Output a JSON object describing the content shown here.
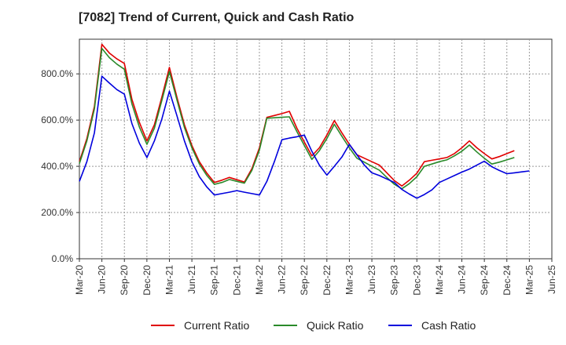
{
  "chart_data": {
    "type": "line",
    "title": "[7082]  Trend of Current, Quick and Cash Ratio",
    "xlabel": "",
    "ylabel": "",
    "ylim": [
      0,
      950
    ],
    "yticks": [
      0,
      200,
      400,
      600,
      800
    ],
    "ytick_labels": [
      "0.0%",
      "200.0%",
      "400.0%",
      "600.0%",
      "800.0%"
    ],
    "xtick_labels": [
      "Mar-20",
      "Jun-20",
      "Sep-20",
      "Dec-20",
      "Mar-21",
      "Jun-21",
      "Sep-21",
      "Dec-21",
      "Mar-22",
      "Jun-22",
      "Sep-22",
      "Dec-22",
      "Mar-23",
      "Jun-23",
      "Sep-23",
      "Dec-23",
      "Mar-24",
      "Jun-24",
      "Sep-24",
      "Dec-24",
      "Mar-25",
      "Jun-25"
    ],
    "grid": true,
    "legend_position": "bottom",
    "series": [
      {
        "name": "Current Ratio",
        "color": "#e00000",
        "points": [
          [
            0,
            420
          ],
          [
            1,
            520
          ],
          [
            2,
            660
          ],
          [
            3,
            928
          ],
          [
            4,
            890
          ],
          [
            5,
            865
          ],
          [
            6,
            845
          ],
          [
            7,
            690
          ],
          [
            8,
            590
          ],
          [
            9,
            510
          ],
          [
            10,
            580
          ],
          [
            11,
            700
          ],
          [
            12,
            828
          ],
          [
            13,
            700
          ],
          [
            14,
            580
          ],
          [
            15,
            490
          ],
          [
            16,
            420
          ],
          [
            17,
            370
          ],
          [
            18,
            330
          ],
          [
            19,
            340
          ],
          [
            20,
            352
          ],
          [
            21,
            342
          ],
          [
            22,
            332
          ],
          [
            23,
            390
          ],
          [
            24,
            480
          ],
          [
            25,
            612
          ],
          [
            26,
            620
          ],
          [
            27,
            628
          ],
          [
            28,
            638
          ],
          [
            29,
            565
          ],
          [
            30,
            505
          ],
          [
            31,
            445
          ],
          [
            32,
            480
          ],
          [
            33,
            535
          ],
          [
            34,
            598
          ],
          [
            35,
            545
          ],
          [
            36,
            495
          ],
          [
            37,
            450
          ],
          [
            38,
            435
          ],
          [
            39,
            420
          ],
          [
            40,
            405
          ],
          [
            41,
            372
          ],
          [
            42,
            338
          ],
          [
            43,
            315
          ],
          [
            44,
            340
          ],
          [
            45,
            370
          ],
          [
            46,
            420
          ],
          [
            47,
            426
          ],
          [
            48,
            432
          ],
          [
            49,
            438
          ],
          [
            50,
            455
          ],
          [
            51,
            480
          ],
          [
            52,
            510
          ],
          [
            53,
            480
          ],
          [
            54,
            455
          ],
          [
            55,
            432
          ],
          [
            56,
            442
          ],
          [
            57,
            455
          ],
          [
            58,
            468
          ]
        ]
      },
      {
        "name": "Quick Ratio",
        "color": "#2a8a2a",
        "points": [
          [
            0,
            412
          ],
          [
            1,
            510
          ],
          [
            2,
            648
          ],
          [
            3,
            910
          ],
          [
            4,
            870
          ],
          [
            5,
            842
          ],
          [
            6,
            820
          ],
          [
            7,
            670
          ],
          [
            8,
            570
          ],
          [
            9,
            495
          ],
          [
            10,
            565
          ],
          [
            11,
            685
          ],
          [
            12,
            810
          ],
          [
            13,
            688
          ],
          [
            14,
            568
          ],
          [
            15,
            480
          ],
          [
            16,
            410
          ],
          [
            17,
            360
          ],
          [
            18,
            322
          ],
          [
            19,
            330
          ],
          [
            20,
            343
          ],
          [
            21,
            335
          ],
          [
            22,
            327
          ],
          [
            23,
            382
          ],
          [
            24,
            470
          ],
          [
            25,
            608
          ],
          [
            26,
            610
          ],
          [
            27,
            612
          ],
          [
            28,
            614
          ],
          [
            29,
            550
          ],
          [
            30,
            490
          ],
          [
            31,
            430
          ],
          [
            32,
            468
          ],
          [
            33,
            520
          ],
          [
            34,
            582
          ],
          [
            35,
            530
          ],
          [
            36,
            480
          ],
          [
            37,
            435
          ],
          [
            38,
            418
          ],
          [
            39,
            400
          ],
          [
            40,
            383
          ],
          [
            41,
            352
          ],
          [
            42,
            322
          ],
          [
            43,
            303
          ],
          [
            44,
            325
          ],
          [
            45,
            355
          ],
          [
            46,
            400
          ],
          [
            47,
            410
          ],
          [
            48,
            420
          ],
          [
            49,
            428
          ],
          [
            50,
            445
          ],
          [
            51,
            465
          ],
          [
            52,
            492
          ],
          [
            53,
            462
          ],
          [
            54,
            435
          ],
          [
            55,
            410
          ],
          [
            56,
            418
          ],
          [
            57,
            428
          ],
          [
            58,
            438
          ]
        ]
      },
      {
        "name": "Cash Ratio",
        "color": "#0000dd",
        "points": [
          [
            0,
            335
          ],
          [
            1,
            420
          ],
          [
            2,
            545
          ],
          [
            3,
            790
          ],
          [
            4,
            760
          ],
          [
            5,
            732
          ],
          [
            6,
            712
          ],
          [
            7,
            585
          ],
          [
            8,
            500
          ],
          [
            9,
            438
          ],
          [
            10,
            510
          ],
          [
            11,
            605
          ],
          [
            12,
            725
          ],
          [
            13,
            620
          ],
          [
            14,
            510
          ],
          [
            15,
            420
          ],
          [
            16,
            355
          ],
          [
            17,
            310
          ],
          [
            18,
            276
          ],
          [
            19,
            282
          ],
          [
            20,
            288
          ],
          [
            21,
            295
          ],
          [
            22,
            288
          ],
          [
            23,
            282
          ],
          [
            24,
            276
          ],
          [
            25,
            335
          ],
          [
            26,
            420
          ],
          [
            27,
            515
          ],
          [
            28,
            522
          ],
          [
            29,
            528
          ],
          [
            30,
            535
          ],
          [
            31,
            465
          ],
          [
            32,
            405
          ],
          [
            33,
            362
          ],
          [
            34,
            400
          ],
          [
            35,
            440
          ],
          [
            36,
            495
          ],
          [
            37,
            450
          ],
          [
            38,
            405
          ],
          [
            39,
            372
          ],
          [
            40,
            360
          ],
          [
            41,
            345
          ],
          [
            42,
            330
          ],
          [
            43,
            300
          ],
          [
            44,
            280
          ],
          [
            45,
            262
          ],
          [
            46,
            278
          ],
          [
            47,
            298
          ],
          [
            48,
            330
          ],
          [
            49,
            345
          ],
          [
            50,
            360
          ],
          [
            51,
            375
          ],
          [
            52,
            388
          ],
          [
            53,
            405
          ],
          [
            54,
            422
          ],
          [
            55,
            398
          ],
          [
            56,
            382
          ],
          [
            57,
            368
          ],
          [
            58,
            372
          ],
          [
            59,
            376
          ],
          [
            60,
            380
          ]
        ]
      }
    ]
  },
  "legend": {
    "items": [
      "Current Ratio",
      "Quick Ratio",
      "Cash Ratio"
    ]
  }
}
